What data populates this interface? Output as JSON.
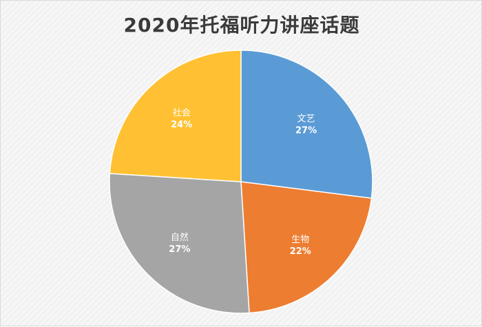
{
  "chart_data": {
    "type": "pie",
    "title": "2020年托福听力讲座话题",
    "slices": [
      {
        "label": "文艺",
        "value": 27,
        "display": "27%",
        "color": "#5b9bd5"
      },
      {
        "label": "生物",
        "value": 22,
        "display": "22%",
        "color": "#ed7d31"
      },
      {
        "label": "自然",
        "value": 27,
        "display": "27%",
        "color": "#a5a5a5"
      },
      {
        "label": "社会",
        "value": 24,
        "display": "24%",
        "color": "#ffc133"
      }
    ],
    "start": "12 o'clock",
    "direction": "clockwise",
    "legend": "none"
  }
}
